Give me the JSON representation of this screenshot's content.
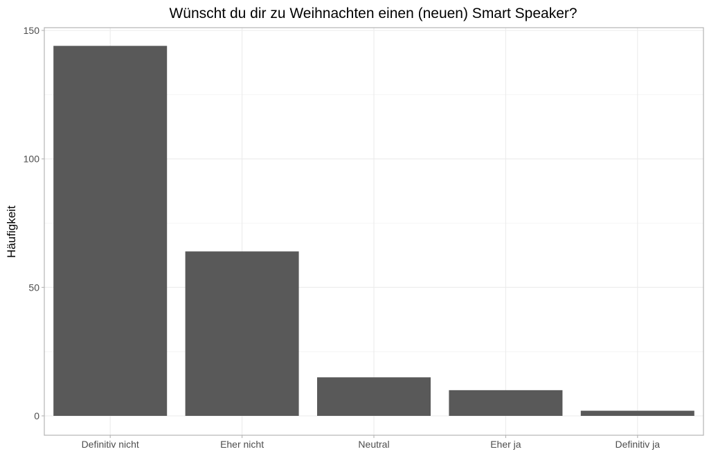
{
  "chart_data": {
    "type": "bar",
    "title": "Wünscht du dir zu Weihnachten einen (neuen) Smart Speaker?",
    "xlabel": "",
    "ylabel": "Häufigkeit",
    "categories": [
      "Definitiv nicht",
      "Eher nicht",
      "Neutral",
      "Eher ja",
      "Definitiv ja"
    ],
    "values": [
      144,
      64,
      15,
      10,
      2
    ],
    "ylim": [
      -7.2,
      151.2
    ],
    "y_ticks": [
      0,
      50,
      100,
      150
    ],
    "y_tick_labels": [
      "0",
      "50",
      "100",
      "150"
    ],
    "grid": true,
    "legend": "none",
    "colors": {
      "bar": "#595959",
      "grid_major": "#ebebeb",
      "grid_minor": "#f2f2f2",
      "panel_border": "#b3b3b3",
      "tick_text": "#4d4d4d",
      "title_text": "#000000"
    }
  }
}
